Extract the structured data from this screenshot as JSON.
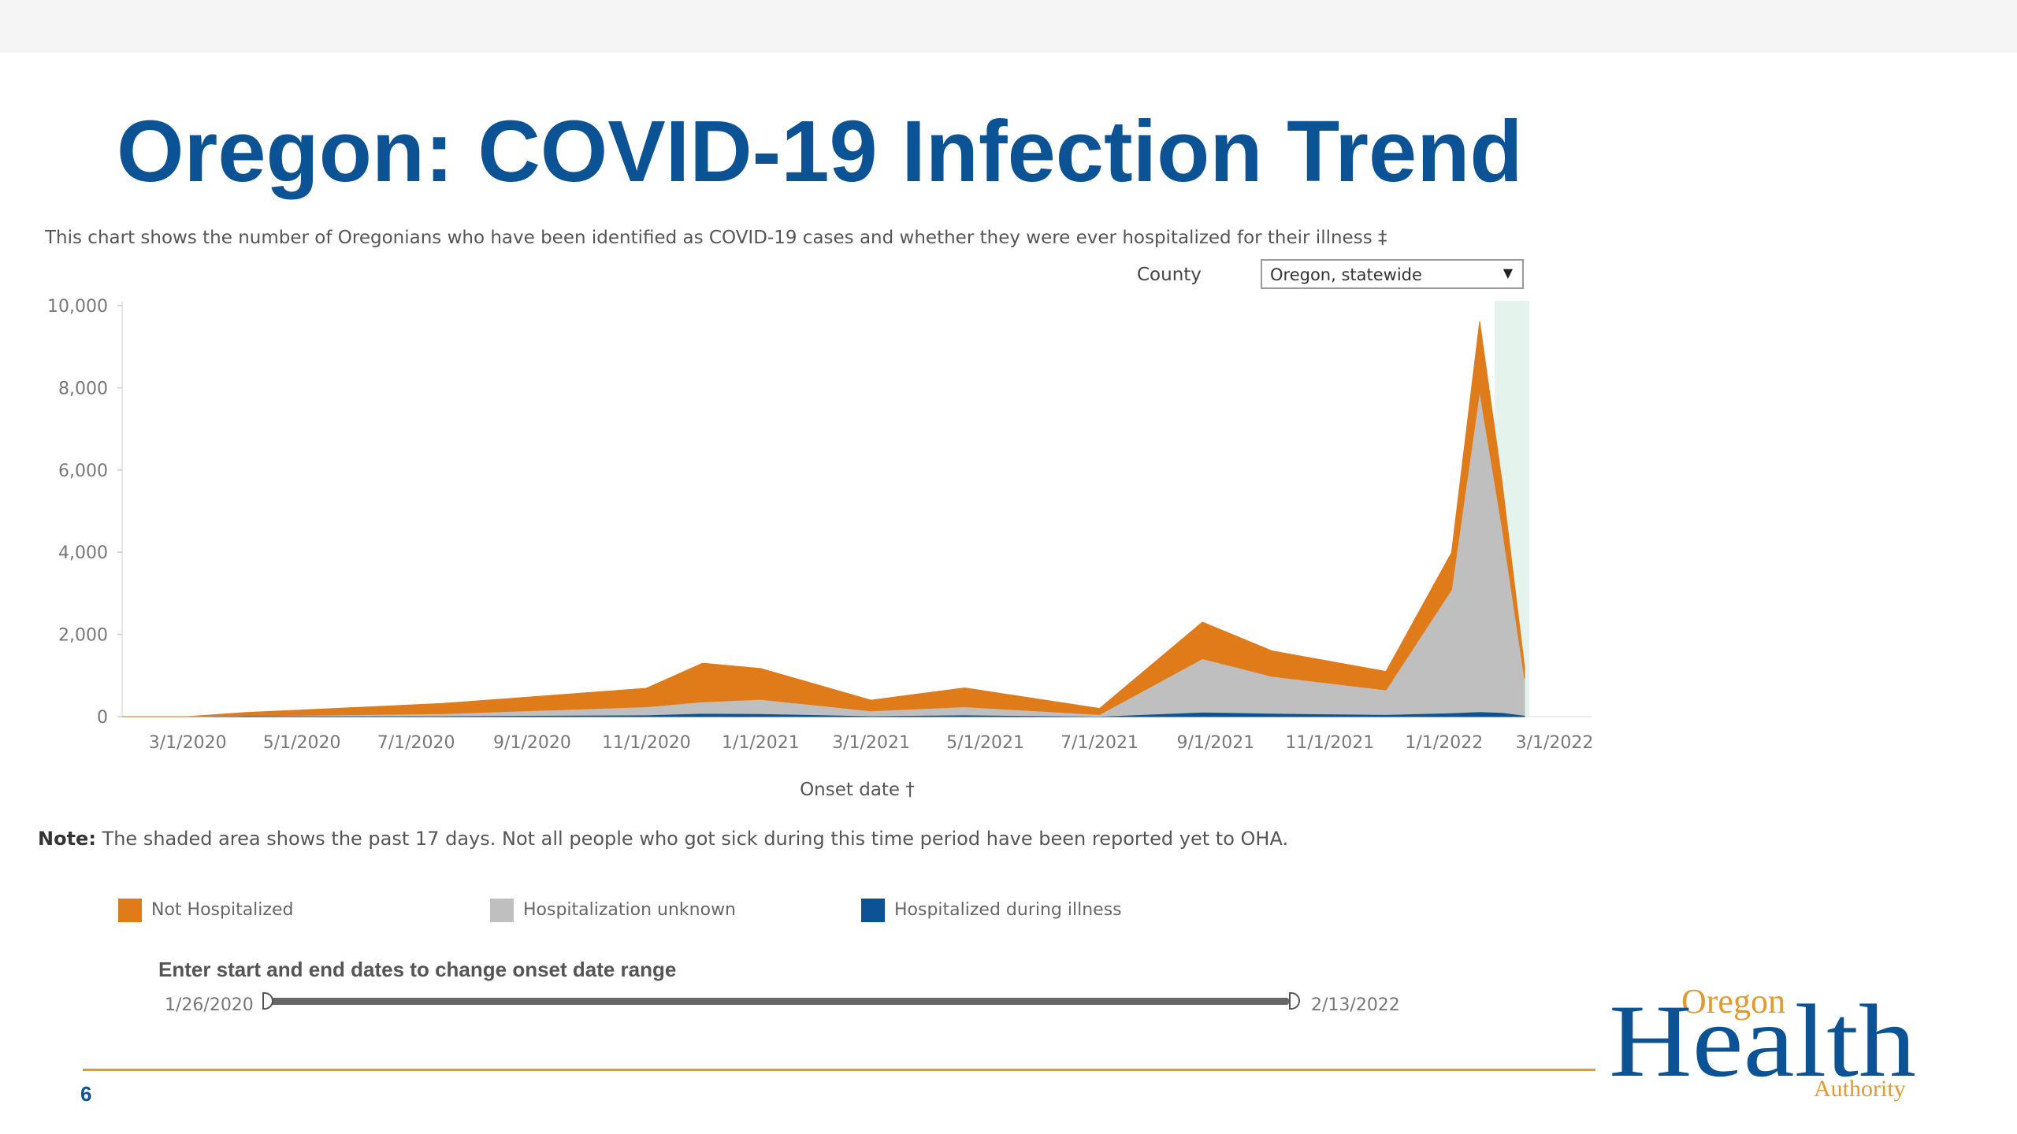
{
  "title": "Oregon: COVID-19 Infection Trend",
  "subtitle": "This chart shows the number of Oregonians who have been identified as COVID-19 cases and whether they were ever hospitalized for their illness ‡",
  "county": {
    "label": "County",
    "selected": "Oregon, statewide"
  },
  "note": {
    "bold": "Note:",
    "text": " The shaded area shows the past 17 days. Not all people who got sick during this time period have been reported yet to OHA."
  },
  "legend": [
    {
      "label": "Not Hospitalized",
      "color": "#e07b1a"
    },
    {
      "label": "Hospitalization unknown",
      "color": "#bfbfbf"
    },
    {
      "label": "Hospitalized during illness",
      "color": "#0b5394"
    }
  ],
  "range": {
    "label": "Enter start and end dates to change onset date range",
    "start": "1/26/2020",
    "end": "2/13/2022"
  },
  "page_number": "6",
  "logo": {
    "top": "Oregon",
    "main": "Health",
    "bottom": "Authority"
  },
  "colors": {
    "title": "#0b5394",
    "accent": "#e39a2c",
    "shade": "#e4f3ec"
  },
  "chart_data": {
    "type": "area",
    "title": "",
    "xlabel": "Onset date †",
    "ylabel": "",
    "yticks": [
      0,
      2000,
      4000,
      6000,
      8000,
      10000
    ],
    "ytick_labels": [
      "0",
      "2,000",
      "4,000",
      "6,000",
      "8,000",
      "10,000"
    ],
    "ylim": [
      0,
      10000
    ],
    "xlim": [
      "2020-01-26",
      "2022-02-13"
    ],
    "xticks": [
      "2020-03-01",
      "2020-05-01",
      "2020-07-01",
      "2020-09-01",
      "2020-11-01",
      "2021-01-01",
      "2021-03-01",
      "2021-05-01",
      "2021-07-01",
      "2021-09-01",
      "2021-11-01",
      "2022-01-01",
      "2022-03-01"
    ],
    "xtick_labels": [
      "3/1/2020",
      "5/1/2020",
      "7/1/2020",
      "9/1/2020",
      "11/1/2020",
      "1/1/2021",
      "3/1/2021",
      "5/1/2021",
      "7/1/2021",
      "9/1/2021",
      "11/1/2021",
      "1/1/2022",
      "3/1/2022"
    ],
    "shaded_period": {
      "start": "2022-01-28",
      "end": "2022-02-13",
      "note": "past 17 days"
    },
    "series": [
      {
        "name": "Hospitalized during illness",
        "color": "#0b5394",
        "x": [
          "2020-01-26",
          "2020-03-01",
          "2020-04-01",
          "2020-07-15",
          "2020-11-01",
          "2020-12-01",
          "2021-01-01",
          "2021-03-01",
          "2021-04-20",
          "2021-07-01",
          "2021-08-25",
          "2021-10-01",
          "2021-12-01",
          "2022-01-05",
          "2022-01-20",
          "2022-02-01",
          "2022-02-13"
        ],
        "values": [
          0,
          0,
          20,
          20,
          40,
          80,
          70,
          20,
          40,
          10,
          110,
          80,
          50,
          90,
          120,
          100,
          30
        ]
      },
      {
        "name": "Hospitalization unknown",
        "color": "#bfbfbf",
        "x": [
          "2020-01-26",
          "2020-03-01",
          "2020-04-01",
          "2020-07-15",
          "2020-11-01",
          "2020-12-01",
          "2021-01-01",
          "2021-03-01",
          "2021-04-20",
          "2021-07-01",
          "2021-08-25",
          "2021-10-01",
          "2021-12-01",
          "2022-01-05",
          "2022-01-20",
          "2022-02-01",
          "2022-02-13"
        ],
        "values": [
          0,
          0,
          0,
          50,
          200,
          280,
          350,
          120,
          200,
          40,
          1300,
          900,
          600,
          3000,
          7800,
          4500,
          900
        ]
      },
      {
        "name": "Not Hospitalized",
        "color": "#e07b1a",
        "x": [
          "2020-01-26",
          "2020-03-01",
          "2020-04-01",
          "2020-07-15",
          "2020-11-01",
          "2020-12-01",
          "2021-01-01",
          "2021-03-01",
          "2021-04-20",
          "2021-07-01",
          "2021-08-25",
          "2021-10-01",
          "2021-12-01",
          "2022-01-05",
          "2022-01-20",
          "2022-02-01",
          "2022-02-13"
        ],
        "values": [
          0,
          0,
          80,
          250,
          450,
          940,
          750,
          260,
          460,
          150,
          890,
          620,
          450,
          900,
          1700,
          1100,
          270
        ]
      }
    ],
    "grid": false,
    "legend_position": "bottom"
  }
}
